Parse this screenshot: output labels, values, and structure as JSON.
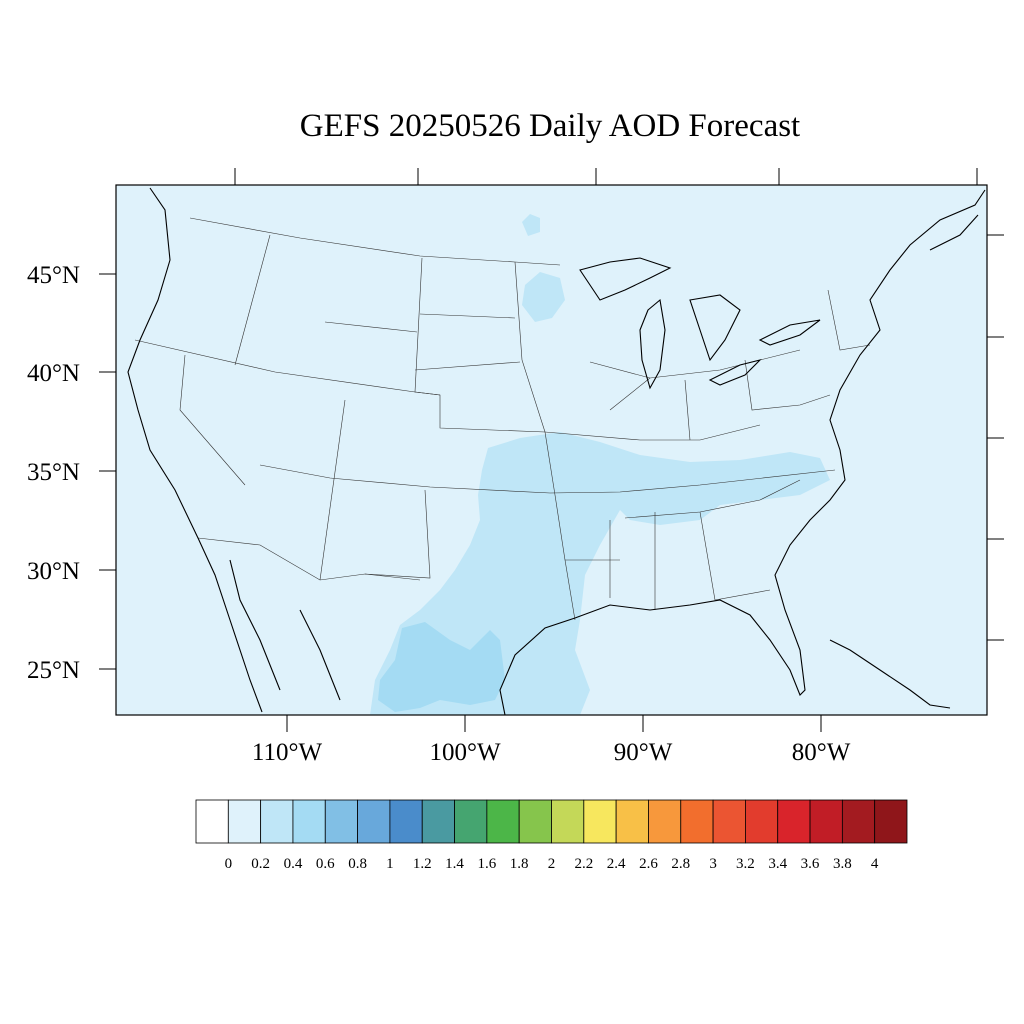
{
  "title": "GEFS 20250526 Daily AOD Forecast",
  "map": {
    "projection": "lambert-conformal",
    "background_color": "#dff2fb",
    "lat_labels": [
      "45°N",
      "40°N",
      "35°N",
      "30°N",
      "25°N"
    ],
    "lon_labels": [
      "110°W",
      "100°W",
      "90°W",
      "80°W"
    ],
    "field": "Aerosol Optical Depth (AOD)",
    "dominant_value_range": [
      0.0,
      0.4
    ]
  },
  "colorbar": {
    "labels": [
      "0",
      "0.2",
      "0.4",
      "0.6",
      "0.8",
      "1",
      "1.2",
      "1.4",
      "1.6",
      "1.8",
      "2",
      "2.2",
      "2.4",
      "2.6",
      "2.8",
      "3",
      "3.2",
      "3.4",
      "3.6",
      "3.8",
      "4"
    ],
    "colors": [
      "#ffffff",
      "#dff2fb",
      "#bfe6f7",
      "#a4dbf3",
      "#81bfe5",
      "#68a8db",
      "#4a8ccb",
      "#4a9aa1",
      "#45a570",
      "#4cb648",
      "#86c54c",
      "#c4d858",
      "#f7e75e",
      "#f8c047",
      "#f7983c",
      "#f26e2d",
      "#eb5532",
      "#e23c2d",
      "#d9242b",
      "#c11d26",
      "#a31b20",
      "#8f161a"
    ]
  }
}
